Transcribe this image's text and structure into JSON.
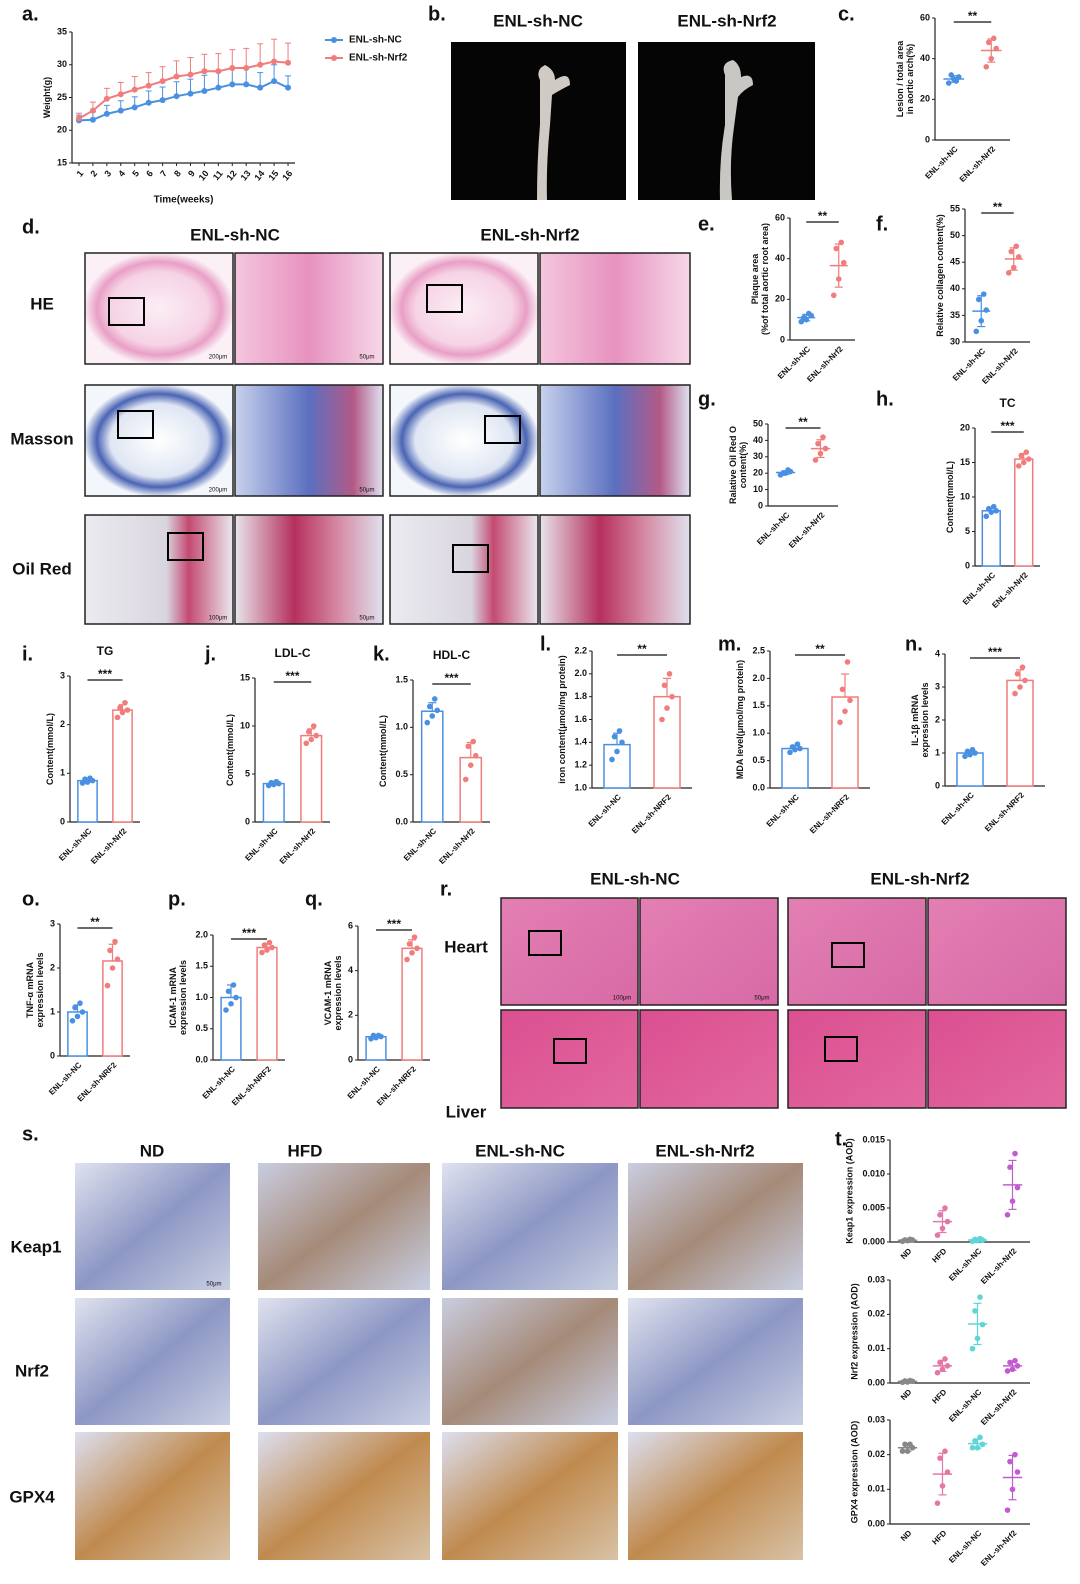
{
  "figure": {
    "panel_b": {
      "letter": "b.",
      "headers": [
        "ENL-sh-NC",
        "ENL-sh-Nrf2"
      ]
    },
    "panel_d": {
      "letter": "d.",
      "headers": [
        "ENL-sh-NC",
        "ENL-sh-Nrf2"
      ],
      "rows": [
        "HE",
        "Masson",
        "Oil Red"
      ],
      "scale_bars": [
        [
          "200μm",
          "50μm"
        ],
        [
          "200μm",
          "50μm"
        ],
        [
          "100μm",
          "50μm"
        ]
      ]
    },
    "panel_r": {
      "letter": "r.",
      "headers": [
        "ENL-sh-NC",
        "ENL-sh-Nrf2"
      ],
      "rows": [
        "Heart",
        "Liver"
      ],
      "scale_bars": [
        "100μm",
        "50μm"
      ]
    },
    "panel_s": {
      "letter": "s.",
      "headers": [
        "ND",
        "HFD",
        "ENL-sh-NC",
        "ENL-sh-Nrf2"
      ],
      "rows": [
        "Keap1",
        "Nrf2",
        "GPX4"
      ],
      "scale_bar": "50μm"
    }
  },
  "chart_data": [
    {
      "type": "line",
      "letter": "a.",
      "ylabel": "Weight(g)",
      "xlabel": "Time(weeks)",
      "x": [
        1,
        2,
        3,
        4,
        5,
        6,
        7,
        8,
        9,
        10,
        11,
        12,
        13,
        14,
        15,
        16
      ],
      "xlim": [
        0.5,
        16.5
      ],
      "xticks": [
        1,
        2,
        3,
        4,
        5,
        6,
        7,
        8,
        9,
        10,
        11,
        12,
        13,
        14,
        15,
        16
      ],
      "ylim": [
        15,
        35
      ],
      "yticks": [
        15,
        20,
        25,
        30,
        35
      ],
      "legend": "top-right",
      "series": [
        {
          "name": "ENL-sh-NC",
          "color": "#4a90e2",
          "values": [
            21.5,
            21.6,
            22.5,
            23,
            23.5,
            24.2,
            24.6,
            25.2,
            25.6,
            26,
            26.5,
            27,
            27,
            26.5,
            27.5,
            26.5
          ],
          "errors": [
            0.8,
            1.2,
            1.3,
            1.5,
            1.6,
            1.8,
            2,
            2.2,
            2.2,
            2.4,
            2.4,
            2.5,
            2.4,
            2.3,
            2.5,
            1.8
          ]
        },
        {
          "name": "ENL-sh-Nrf2",
          "color": "#f07c7c",
          "values": [
            21.8,
            23,
            24.8,
            25.5,
            26.2,
            26.8,
            27.5,
            28.2,
            28.5,
            29,
            29,
            29.5,
            29.5,
            30,
            30.5,
            30.3
          ],
          "errors": [
            0.8,
            1.3,
            1.6,
            1.8,
            2,
            2,
            2.2,
            2.4,
            2.6,
            2.6,
            2.7,
            2.8,
            3,
            3.2,
            3.4,
            3
          ]
        }
      ]
    },
    {
      "type": "dot",
      "letter": "c.",
      "ylabel": [
        "Lesion / total area",
        "in aortic arch(%)"
      ],
      "categories": [
        "ENL-sh-NC",
        "ENL-sh-Nrf2"
      ],
      "ylim": [
        0,
        60
      ],
      "yticks": [
        0,
        20,
        40,
        60
      ],
      "significance": "**",
      "groups": [
        {
          "color": "#4a90e2",
          "points": [
            28,
            30,
            31,
            32,
            29
          ],
          "mean": 30,
          "sd": 1.6
        },
        {
          "color": "#f07c7c",
          "points": [
            36,
            40,
            45,
            48,
            50
          ],
          "mean": 44,
          "sd": 5.7
        }
      ]
    },
    {
      "type": "dot",
      "letter": "e.",
      "ylabel": [
        "Plaque area",
        "(%of total aortic root area)"
      ],
      "categories": [
        "ENL-sh-NC",
        "ENL-sh-Nrf2"
      ],
      "ylim": [
        0,
        60
      ],
      "yticks": [
        0,
        20,
        40,
        60
      ],
      "significance": "**",
      "groups": [
        {
          "color": "#4a90e2",
          "points": [
            9,
            10,
            12,
            11,
            13
          ],
          "mean": 11,
          "sd": 1.6
        },
        {
          "color": "#f07c7c",
          "points": [
            22,
            30,
            38,
            45,
            48
          ],
          "mean": 36.6,
          "sd": 10.6
        }
      ]
    },
    {
      "type": "dot",
      "letter": "f.",
      "ylabel": "Relative collagen content(%)",
      "categories": [
        "ENL-sh-NC",
        "ENL-sh-Nrf2"
      ],
      "ylim": [
        30,
        55
      ],
      "yticks": [
        30,
        35,
        40,
        45,
        50,
        55
      ],
      "significance": "**",
      "groups": [
        {
          "color": "#4a90e2",
          "points": [
            32,
            34,
            36,
            38,
            39
          ],
          "mean": 35.8,
          "sd": 2.9
        },
        {
          "color": "#f07c7c",
          "points": [
            43,
            44,
            46,
            47,
            48
          ],
          "mean": 45.6,
          "sd": 2.1
        }
      ]
    },
    {
      "type": "dot",
      "letter": "g.",
      "ylabel": [
        "Ralative Oil Red O",
        "content(%)"
      ],
      "categories": [
        "ENL-sh-NC",
        "ENL-sh-Nrf2"
      ],
      "ylim": [
        0,
        50
      ],
      "yticks": [
        0,
        10,
        20,
        30,
        40,
        50
      ],
      "significance": "**",
      "groups": [
        {
          "color": "#4a90e2",
          "points": [
            19,
            20,
            21,
            20,
            22
          ],
          "mean": 20.4,
          "sd": 1.1
        },
        {
          "color": "#f07c7c",
          "points": [
            28,
            32,
            35,
            38,
            42
          ],
          "mean": 35,
          "sd": 5.4
        }
      ]
    },
    {
      "type": "bar_dot",
      "letter": "h.",
      "title": "TC",
      "ylabel": "Content(mmol/L)",
      "categories": [
        "ENL-sh-NC",
        "ENL-sh-Nrf2"
      ],
      "ylim": [
        0,
        20
      ],
      "yticks": [
        0,
        5,
        10,
        15,
        20
      ],
      "significance": "***",
      "groups": [
        {
          "color": "#4a90e2",
          "points": [
            7.2,
            7.8,
            8,
            8.3,
            8.6
          ],
          "mean": 8,
          "sd": 0.5
        },
        {
          "color": "#f07c7c",
          "points": [
            14.5,
            15,
            15.5,
            16,
            16.5
          ],
          "mean": 15.5,
          "sd": 0.8
        }
      ]
    },
    {
      "type": "bar_dot",
      "letter": "i.",
      "title": "TG",
      "ylabel": "Content(mmol/L)",
      "categories": [
        "ENL-sh-NC",
        "ENL-sh-Nrf2"
      ],
      "ylim": [
        0,
        3
      ],
      "yticks": [
        0,
        1,
        2,
        3
      ],
      "significance": "***",
      "groups": [
        {
          "color": "#4a90e2",
          "points": [
            0.8,
            0.82,
            0.85,
            0.88,
            0.9
          ],
          "mean": 0.85,
          "sd": 0.04
        },
        {
          "color": "#f07c7c",
          "points": [
            2.15,
            2.25,
            2.3,
            2.35,
            2.45
          ],
          "mean": 2.3,
          "sd": 0.11
        }
      ]
    },
    {
      "type": "bar_dot",
      "letter": "j.",
      "title": "LDL-C",
      "ylabel": "Content(mmol/L)",
      "categories": [
        "ENL-sh-NC",
        "ENL-sh-Nrf2"
      ],
      "ylim": [
        0,
        15
      ],
      "yticks": [
        0,
        5,
        10,
        15
      ],
      "significance": "***",
      "groups": [
        {
          "color": "#4a90e2",
          "points": [
            3.8,
            3.9,
            4,
            4.1,
            4.2
          ],
          "mean": 4,
          "sd": 0.16
        },
        {
          "color": "#f07c7c",
          "points": [
            8.2,
            8.6,
            9,
            9.4,
            10
          ],
          "mean": 9,
          "sd": 0.7
        }
      ]
    },
    {
      "type": "bar_dot",
      "letter": "k.",
      "title": "HDL-C",
      "ylabel": "Content(mmol/L)",
      "categories": [
        "ENL-sh-NC",
        "ENL-sh-Nrf2"
      ],
      "ylim": [
        0,
        1.5
      ],
      "yticks": [
        {
          "value": 0,
          "label": "0.0"
        },
        0.5,
        {
          "value": 1,
          "label": "1.0"
        },
        1.5
      ],
      "significance": "***",
      "groups": [
        {
          "color": "#4a90e2",
          "points": [
            1.05,
            1.12,
            1.18,
            1.22,
            1.3
          ],
          "mean": 1.17,
          "sd": 0.09
        },
        {
          "color": "#f07c7c",
          "points": [
            0.45,
            0.6,
            0.7,
            0.8,
            0.85
          ],
          "mean": 0.68,
          "sd": 0.16
        }
      ]
    },
    {
      "type": "bar_dot",
      "letter": "l.",
      "ylabel": "iron content(μmol/mg protein)",
      "categories": [
        "ENL-sh-NC",
        "ENL-sh-NRF2"
      ],
      "ylim": [
        1,
        2.2
      ],
      "yticks": [
        {
          "value": 1,
          "label": "1.0"
        },
        1.2,
        1.4,
        1.6,
        1.8,
        {
          "value": 2,
          "label": "2.0"
        },
        2.2
      ],
      "significance": "**",
      "groups": [
        {
          "color": "#4a90e2",
          "points": [
            1.25,
            1.32,
            1.4,
            1.45,
            1.5
          ],
          "mean": 1.38,
          "sd": 0.1
        },
        {
          "color": "#f07c7c",
          "points": [
            1.6,
            1.7,
            1.8,
            1.9,
            2.0
          ],
          "mean": 1.8,
          "sd": 0.16
        }
      ]
    },
    {
      "type": "bar_dot",
      "letter": "m.",
      "ylabel": "MDA level(μmol/mg protein)",
      "categories": [
        "ENL-sh-NC",
        "ENL-sh-NRF2"
      ],
      "ylim": [
        0,
        2.5
      ],
      "yticks": [
        {
          "value": 0,
          "label": "0.0"
        },
        0.5,
        {
          "value": 1,
          "label": "1.0"
        },
        1.5,
        {
          "value": 2,
          "label": "2.0"
        },
        2.5
      ],
      "significance": "**",
      "groups": [
        {
          "color": "#4a90e2",
          "points": [
            0.65,
            0.7,
            0.72,
            0.75,
            0.8
          ],
          "mean": 0.72,
          "sd": 0.06
        },
        {
          "color": "#f07c7c",
          "points": [
            1.2,
            1.4,
            1.6,
            1.8,
            2.3
          ],
          "mean": 1.66,
          "sd": 0.42
        }
      ]
    },
    {
      "type": "bar_dot",
      "letter": "n.",
      "ylabel": [
        "IL-1β mRNA",
        "expression levels"
      ],
      "categories": [
        "ENL-sh-NC",
        "ENL-sh-NRF2"
      ],
      "ylim": [
        0,
        4
      ],
      "yticks": [
        0,
        1,
        2,
        3,
        4
      ],
      "significance": "***",
      "groups": [
        {
          "color": "#4a90e2",
          "points": [
            0.9,
            0.95,
            1.0,
            1.05,
            1.1
          ],
          "mean": 1.0,
          "sd": 0.08
        },
        {
          "color": "#f07c7c",
          "points": [
            2.8,
            3.0,
            3.2,
            3.4,
            3.6
          ],
          "mean": 3.2,
          "sd": 0.32
        }
      ]
    },
    {
      "type": "bar_dot",
      "letter": "o.",
      "ylabel": [
        "TNF-α mRNA",
        "expression levels"
      ],
      "categories": [
        "ENL-sh-NC",
        "ENL-sh-NRF2"
      ],
      "ylim": [
        0,
        3
      ],
      "yticks": [
        0,
        1,
        2,
        3
      ],
      "significance": "**",
      "groups": [
        {
          "color": "#4a90e2",
          "points": [
            0.8,
            0.9,
            1.0,
            1.1,
            1.2
          ],
          "mean": 1.0,
          "sd": 0.16
        },
        {
          "color": "#f07c7c",
          "points": [
            1.6,
            2.0,
            2.2,
            2.4,
            2.6
          ],
          "mean": 2.16,
          "sd": 0.38
        }
      ]
    },
    {
      "type": "bar_dot",
      "letter": "p.",
      "ylabel": [
        "ICAM-1 mRNA",
        "expression levels"
      ],
      "categories": [
        "ENL-sh-NC",
        "ENL-sh-NRF2"
      ],
      "ylim": [
        0,
        2
      ],
      "yticks": [
        {
          "value": 0,
          "label": "0.0"
        },
        0.5,
        {
          "value": 1,
          "label": "1.0"
        },
        1.5,
        {
          "value": 2,
          "label": "2.0"
        }
      ],
      "significance": "***",
      "groups": [
        {
          "color": "#4a90e2",
          "points": [
            0.8,
            0.9,
            1.0,
            1.1,
            1.2
          ],
          "mean": 1.0,
          "sd": 0.2
        },
        {
          "color": "#f07c7c",
          "points": [
            1.72,
            1.76,
            1.8,
            1.84,
            1.88
          ],
          "mean": 1.8,
          "sd": 0.06
        }
      ]
    },
    {
      "type": "bar_dot",
      "letter": "q.",
      "ylabel": [
        "VCAM-1 mRNA",
        "expression levels"
      ],
      "categories": [
        "ENL-sh-NC",
        "ENL-sh-NRF2"
      ],
      "ylim": [
        0,
        6
      ],
      "yticks": [
        0,
        2,
        4,
        6
      ],
      "significance": "***",
      "groups": [
        {
          "color": "#4a90e2",
          "points": [
            0.95,
            1.0,
            1.05,
            1.1,
            1.1
          ],
          "mean": 1.04,
          "sd": 0.06
        },
        {
          "color": "#f07c7c",
          "points": [
            4.5,
            4.8,
            5.0,
            5.2,
            5.5
          ],
          "mean": 5.0,
          "sd": 0.38
        }
      ]
    },
    {
      "type": "dot",
      "letter": "t.",
      "ylabel": "Keap1 expression (AOD)",
      "categories": [
        "ND",
        "HFD",
        "ENL-sh-NC",
        "ENL-sh-Nrf2"
      ],
      "ylim": [
        0,
        0.015
      ],
      "yticks": [
        {
          "value": 0,
          "label": "0.000"
        },
        0.005,
        {
          "value": 0.01,
          "label": "0.010"
        },
        0.015
      ],
      "groups": [
        {
          "color": "#888888",
          "points": [
            0.0001,
            0.0002,
            0.0003,
            0.0003,
            0.0004
          ],
          "mean": 0.00026,
          "sd": 0.0001
        },
        {
          "color": "#e377a8",
          "points": [
            0.001,
            0.002,
            0.003,
            0.004,
            0.005
          ],
          "mean": 0.003,
          "sd": 0.0016
        },
        {
          "color": "#5fd6d6",
          "points": [
            0.0001,
            0.0002,
            0.0003,
            0.0004,
            0.0005
          ],
          "mean": 0.0003,
          "sd": 0.00016
        },
        {
          "color": "#c25bd0",
          "points": [
            0.004,
            0.006,
            0.008,
            0.011,
            0.013
          ],
          "mean": 0.0084,
          "sd": 0.0036
        }
      ]
    },
    {
      "type": "dot",
      "ylabel": "Nrf2 expression (AOD)",
      "categories": [
        "ND",
        "HFD",
        "ENL-sh-NC",
        "ENL-sh-Nrf2"
      ],
      "ylim": [
        0,
        0.03
      ],
      "yticks": [
        {
          "value": 0,
          "label": "0.00"
        },
        0.01,
        0.02,
        0.03
      ],
      "groups": [
        {
          "color": "#888888",
          "points": [
            0.0002,
            0.0003,
            0.0005,
            0.0006,
            0.0007
          ],
          "mean": 0.00046,
          "sd": 0.0002
        },
        {
          "color": "#e377a8",
          "points": [
            0.003,
            0.004,
            0.005,
            0.006,
            0.007
          ],
          "mean": 0.005,
          "sd": 0.0016
        },
        {
          "color": "#5fd6d6",
          "points": [
            0.01,
            0.013,
            0.017,
            0.021,
            0.025
          ],
          "mean": 0.0172,
          "sd": 0.006
        },
        {
          "color": "#c25bd0",
          "points": [
            0.0035,
            0.004,
            0.005,
            0.006,
            0.0065
          ],
          "mean": 0.005,
          "sd": 0.0013
        }
      ]
    },
    {
      "type": "dot",
      "ylabel": "GPX4 expression (AOD)",
      "categories": [
        "ND",
        "HFD",
        "ENL-sh-NC",
        "ENL-sh-Nrf2"
      ],
      "ylim": [
        0,
        0.03
      ],
      "yticks": [
        {
          "value": 0,
          "label": "0.00"
        },
        0.01,
        0.02,
        0.03
      ],
      "groups": [
        {
          "color": "#888888",
          "points": [
            0.021,
            0.021,
            0.022,
            0.023,
            0.023
          ],
          "mean": 0.022,
          "sd": 0.001
        },
        {
          "color": "#e377a8",
          "points": [
            0.006,
            0.011,
            0.015,
            0.019,
            0.021
          ],
          "mean": 0.0144,
          "sd": 0.006
        },
        {
          "color": "#5fd6d6",
          "points": [
            0.022,
            0.022,
            0.023,
            0.024,
            0.025
          ],
          "mean": 0.0232,
          "sd": 0.0013
        },
        {
          "color": "#c25bd0",
          "points": [
            0.004,
            0.01,
            0.015,
            0.018,
            0.02
          ],
          "mean": 0.0134,
          "sd": 0.0064
        }
      ]
    }
  ]
}
